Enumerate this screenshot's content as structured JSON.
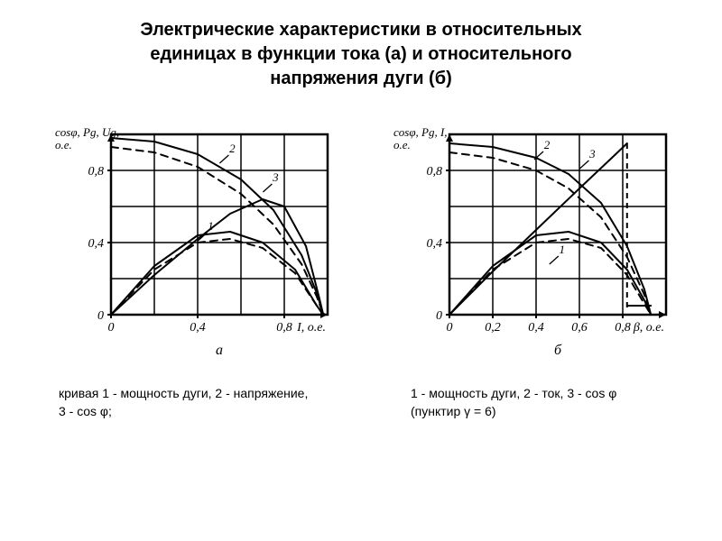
{
  "title_lines": [
    "Электрические характеристики в относительных",
    "единицах в функции тока (а) и относительного",
    "напряжения дуги (б)"
  ],
  "chart_a": {
    "type": "line",
    "y_axis_label": "cosφ, Pg, Ug,\nо.е.",
    "y_ticks": [
      0,
      0.4,
      0.8
    ],
    "y_tick_labels": [
      "0",
      "0,4",
      "0,8"
    ],
    "x_ticks": [
      0,
      0.4,
      0.8
    ],
    "x_tick_labels": [
      "0",
      "0,4",
      "0,8"
    ],
    "x_unit_label": "I, о.е.",
    "sub_label": "а",
    "xlim": [
      0,
      1.0
    ],
    "ylim": [
      0,
      1.0
    ],
    "frame_color": "#000000",
    "grid_color": "#000000",
    "background_color": "#ffffff",
    "line_width_frame": 2.5,
    "line_width_grid": 1.5,
    "line_width_curve": 2,
    "curves": [
      {
        "id": "1",
        "label_pos": [
          0.46,
          0.47
        ],
        "solid": [
          [
            0,
            0
          ],
          [
            0.2,
            0.27
          ],
          [
            0.4,
            0.44
          ],
          [
            0.55,
            0.46
          ],
          [
            0.7,
            0.4
          ],
          [
            0.85,
            0.25
          ],
          [
            0.95,
            0.05
          ],
          [
            0.98,
            0
          ]
        ],
        "dashed": [
          [
            0,
            0
          ],
          [
            0.2,
            0.25
          ],
          [
            0.4,
            0.4
          ],
          [
            0.55,
            0.42
          ],
          [
            0.7,
            0.37
          ],
          [
            0.85,
            0.23
          ],
          [
            0.95,
            0.05
          ],
          [
            0.98,
            0
          ]
        ]
      },
      {
        "id": "2",
        "label_pos": [
          0.56,
          0.9
        ],
        "solid": [
          [
            0,
            0.98
          ],
          [
            0.2,
            0.96
          ],
          [
            0.4,
            0.89
          ],
          [
            0.6,
            0.75
          ],
          [
            0.75,
            0.58
          ],
          [
            0.88,
            0.33
          ],
          [
            0.95,
            0.12
          ],
          [
            0.98,
            0
          ]
        ],
        "dashed": [
          [
            0,
            0.93
          ],
          [
            0.2,
            0.9
          ],
          [
            0.4,
            0.82
          ],
          [
            0.6,
            0.67
          ],
          [
            0.75,
            0.5
          ],
          [
            0.88,
            0.28
          ],
          [
            0.95,
            0.1
          ],
          [
            0.98,
            0
          ]
        ]
      },
      {
        "id": "3",
        "label_pos": [
          0.76,
          0.74
        ],
        "solid": [
          [
            0,
            0
          ],
          [
            0.2,
            0.22
          ],
          [
            0.4,
            0.42
          ],
          [
            0.55,
            0.56
          ],
          [
            0.7,
            0.64
          ],
          [
            0.8,
            0.6
          ],
          [
            0.9,
            0.38
          ],
          [
            0.96,
            0.1
          ],
          [
            0.98,
            0
          ]
        ]
      }
    ]
  },
  "chart_b": {
    "type": "line",
    "y_axis_label": "cosφ, Pg, I,\nо.е.",
    "y_ticks": [
      0,
      0.4,
      0.8
    ],
    "y_tick_labels": [
      "0",
      "0,4",
      "0,8"
    ],
    "x_ticks": [
      0,
      0.2,
      0.4,
      0.6,
      0.8
    ],
    "x_tick_labels": [
      "0",
      "0,2",
      "0,4",
      "0,6",
      "0,8"
    ],
    "x_unit_label": "β, о.е.",
    "sub_label": "б",
    "xlim": [
      0,
      1.0
    ],
    "ylim": [
      0,
      1.0
    ],
    "frame_color": "#000000",
    "grid_color": "#000000",
    "background_color": "#ffffff",
    "line_width_frame": 2.5,
    "line_width_grid": 1.5,
    "line_width_curve": 2,
    "curves": [
      {
        "id": "1",
        "label_pos": [
          0.52,
          0.34
        ],
        "solid": [
          [
            0,
            0
          ],
          [
            0.2,
            0.27
          ],
          [
            0.4,
            0.44
          ],
          [
            0.55,
            0.46
          ],
          [
            0.7,
            0.4
          ],
          [
            0.82,
            0.25
          ],
          [
            0.9,
            0.08
          ],
          [
            0.93,
            0
          ]
        ],
        "dashed": [
          [
            0,
            0
          ],
          [
            0.2,
            0.25
          ],
          [
            0.4,
            0.4
          ],
          [
            0.55,
            0.42
          ],
          [
            0.7,
            0.37
          ],
          [
            0.82,
            0.22
          ],
          [
            0.9,
            0.06
          ],
          [
            0.93,
            0
          ]
        ]
      },
      {
        "id": "2",
        "label_pos": [
          0.45,
          0.92
        ],
        "solid": [
          [
            0,
            0.95
          ],
          [
            0.2,
            0.93
          ],
          [
            0.4,
            0.87
          ],
          [
            0.55,
            0.78
          ],
          [
            0.7,
            0.62
          ],
          [
            0.82,
            0.38
          ],
          [
            0.9,
            0.14
          ],
          [
            0.93,
            0
          ]
        ],
        "dashed": [
          [
            0,
            0.9
          ],
          [
            0.2,
            0.87
          ],
          [
            0.4,
            0.8
          ],
          [
            0.55,
            0.7
          ],
          [
            0.7,
            0.54
          ],
          [
            0.82,
            0.32
          ],
          [
            0.9,
            0.11
          ],
          [
            0.93,
            0
          ]
        ]
      },
      {
        "id": "3",
        "label_pos": [
          0.66,
          0.87
        ],
        "solid": [
          [
            0,
            0
          ],
          [
            0.2,
            0.24
          ],
          [
            0.4,
            0.47
          ],
          [
            0.6,
            0.7
          ],
          [
            0.75,
            0.87
          ],
          [
            0.82,
            0.95
          ],
          [
            0.82,
            0.05
          ],
          [
            0.93,
            0.05
          ]
        ],
        "break_after": 6,
        "dashed_tail": [
          [
            0.82,
            0.95
          ],
          [
            0.82,
            0.02
          ]
        ]
      }
    ]
  },
  "caption_a": "кривая 1 - мощность дуги, 2 - напряжение, 3 - cos φ;",
  "caption_b": "1 - мощность дуги, 2 - ток,\n3 - cos φ (пунктир γ = 6)"
}
